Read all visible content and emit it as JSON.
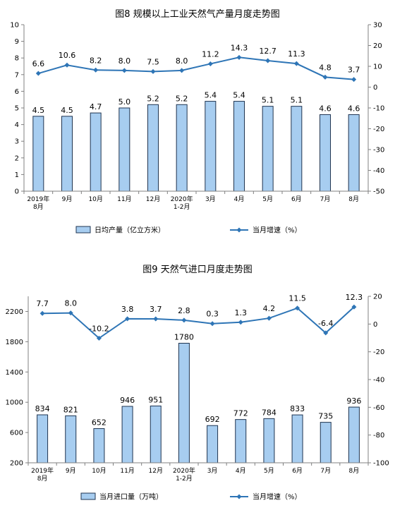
{
  "chart_data": [
    {
      "type": "bar",
      "title": "图8  规模以上工业天然气产量月度走势图",
      "categories": [
        [
          "2019年",
          "8月"
        ],
        [
          "9月"
        ],
        [
          "10月"
        ],
        [
          "11月"
        ],
        [
          "12月"
        ],
        [
          "2020年",
          "1-2月"
        ],
        [
          "3月"
        ],
        [
          "4月"
        ],
        [
          "5月"
        ],
        [
          "6月"
        ],
        [
          "7月"
        ],
        [
          "8月"
        ]
      ],
      "series": [
        {
          "name": "日均产量（亿立方米）",
          "type": "bar",
          "axis": "left",
          "values": [
            4.5,
            4.5,
            4.7,
            5.0,
            5.2,
            5.2,
            5.4,
            5.4,
            5.1,
            5.1,
            4.6,
            4.6
          ],
          "labels": [
            "4.5",
            "4.5",
            "4.7",
            "5.0",
            "5.2",
            "5.2",
            "5.4",
            "5.4",
            "5.1",
            "5.1",
            "4.6",
            "4.6"
          ]
        },
        {
          "name": "当月增速（%）",
          "type": "line",
          "axis": "right",
          "values": [
            6.6,
            10.6,
            8.2,
            8.0,
            7.5,
            8.0,
            11.2,
            14.3,
            12.7,
            11.3,
            4.8,
            3.7
          ],
          "labels": [
            "6.6",
            "10.6",
            "8.2",
            "8.0",
            "7.5",
            "8.0",
            "11.2",
            "14.3",
            "12.7",
            "11.3",
            "4.8",
            "3.7"
          ]
        }
      ],
      "ylim_left": [
        0,
        10
      ],
      "yticks_left": [
        "0",
        "1",
        "2",
        "3",
        "4",
        "5",
        "6",
        "7",
        "8",
        "9",
        "10"
      ],
      "ylim_right": [
        -50,
        30
      ],
      "yticks_right": [
        "-50",
        "-40",
        "-30",
        "-20",
        "-10",
        "0",
        "10",
        "20",
        "30"
      ],
      "legend_position": "bottom",
      "colors": {
        "bar_fill": "#a7cdf0",
        "bar_stroke": "#1f3450",
        "line": "#2e75b6"
      }
    },
    {
      "type": "bar",
      "title": "图9  天然气进口月度走势图",
      "categories": [
        [
          "2019年",
          "8月"
        ],
        [
          "9月"
        ],
        [
          "10月"
        ],
        [
          "11月"
        ],
        [
          "12月"
        ],
        [
          "2020年",
          "1-2月"
        ],
        [
          "3月"
        ],
        [
          "4月"
        ],
        [
          "5月"
        ],
        [
          "6月"
        ],
        [
          "7月"
        ],
        [
          "8月"
        ]
      ],
      "series": [
        {
          "name": "当月进口量（万吨）",
          "type": "bar",
          "axis": "left",
          "values": [
            834,
            821,
            652,
            946,
            951,
            1780,
            692,
            772,
            784,
            833,
            735,
            936
          ],
          "labels": [
            "834",
            "821",
            "652",
            "946",
            "951",
            "1780",
            "692",
            "772",
            "784",
            "833",
            "735",
            "936"
          ]
        },
        {
          "name": "当月增速（%）",
          "type": "line",
          "axis": "right",
          "values": [
            7.7,
            8.0,
            -10.2,
            3.8,
            3.7,
            2.8,
            0.3,
            1.3,
            4.2,
            11.5,
            -6.4,
            12.3
          ],
          "labels": [
            "7.7",
            "8.0",
            "-10.2",
            "3.8",
            "3.7",
            "2.8",
            "0.3",
            "1.3",
            "4.2",
            "11.5",
            "-6.4",
            "12.3"
          ]
        }
      ],
      "ylim_left": [
        200,
        2400
      ],
      "yticks_left": [
        "200",
        "600",
        "1000",
        "1400",
        "1800",
        "2200"
      ],
      "ylim_right": [
        -100,
        20
      ],
      "yticks_right": [
        "-100",
        "-80",
        "-60",
        "-40",
        "-20",
        "0",
        "20"
      ],
      "legend_position": "bottom",
      "colors": {
        "bar_fill": "#a7cdf0",
        "bar_stroke": "#1f3450",
        "line": "#2e75b6"
      }
    }
  ]
}
